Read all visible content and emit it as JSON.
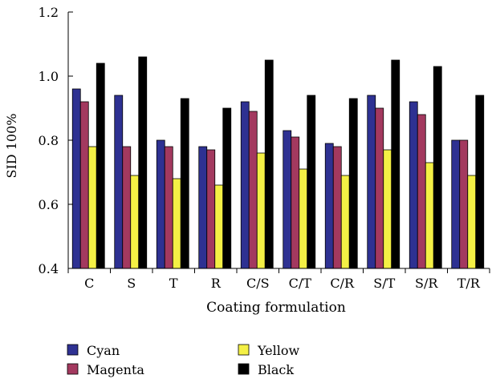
{
  "chart_data": {
    "type": "bar",
    "title": "",
    "xlabel": "Coating formulation",
    "ylabel": "SID 100%",
    "ylim": [
      0.4,
      1.2
    ],
    "yticks": [
      "0.4",
      "0.6",
      "0.8",
      "1.0",
      "1.2"
    ],
    "grid": false,
    "legend_position": "bottom-left",
    "categories": [
      "C",
      "S",
      "T",
      "R",
      "C/S",
      "C/T",
      "C/R",
      "S/T",
      "S/R",
      "T/R"
    ],
    "series": [
      {
        "name": "Cyan",
        "color": "#2e3192",
        "values": [
          0.96,
          0.94,
          0.8,
          0.78,
          0.92,
          0.83,
          0.79,
          0.94,
          0.92,
          0.8
        ]
      },
      {
        "name": "Magenta",
        "color": "#a3395f",
        "values": [
          0.92,
          0.78,
          0.78,
          0.77,
          0.89,
          0.81,
          0.78,
          0.9,
          0.88,
          0.8
        ]
      },
      {
        "name": "Yellow",
        "color": "#f4f045",
        "values": [
          0.78,
          0.69,
          0.68,
          0.66,
          0.76,
          0.71,
          0.69,
          0.77,
          0.73,
          0.69
        ]
      },
      {
        "name": "Black",
        "color": "#000000",
        "values": [
          1.04,
          1.06,
          0.93,
          0.9,
          1.05,
          0.94,
          0.93,
          1.05,
          1.03,
          0.94
        ]
      }
    ]
  }
}
